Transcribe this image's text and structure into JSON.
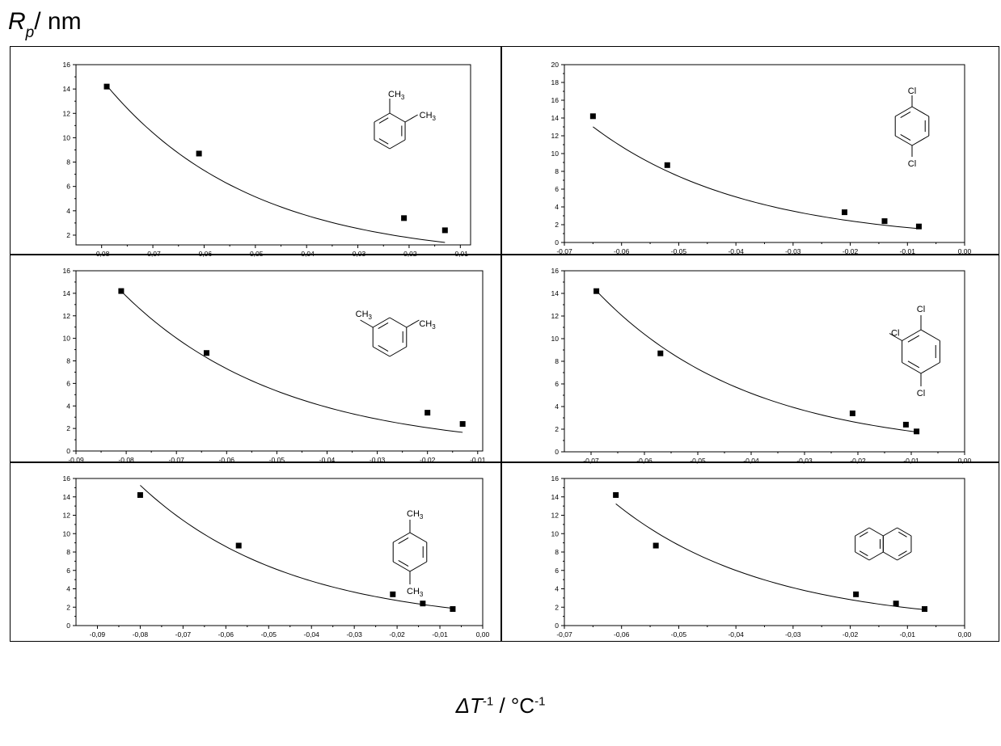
{
  "figure": {
    "ylabel_main": "R",
    "ylabel_sub": "p",
    "ylabel_unit": "/ nm",
    "xlabel_symbol": "ΔT",
    "xlabel_exp": "-1",
    "xlabel_unit": " / °C",
    "xlabel_unit_exp": "-1"
  },
  "chart_data": [
    {
      "type": "scatter",
      "molecule": "o-xylene",
      "xlim": [
        -0.085,
        -0.008
      ],
      "ylim": [
        1.2,
        16
      ],
      "xticks": [
        "-0,08",
        "-0,07",
        "-0,06",
        "-0,05",
        "-0,04",
        "-0,03",
        "-0,02",
        "-0,01"
      ],
      "yticks": [
        "2",
        "4",
        "6",
        "8",
        "10",
        "12",
        "14",
        "16"
      ],
      "points": {
        "x": [
          -0.079,
          -0.061,
          -0.021,
          -0.013
        ],
        "y": [
          14.2,
          8.7,
          3.4,
          2.4
        ]
      },
      "fit": {
        "a": 0.8855,
        "b": -35.2,
        "x_from": -0.079,
        "x_to": -0.013
      },
      "substituents": [
        "CH3",
        "CH3"
      ]
    },
    {
      "type": "scatter",
      "molecule": "p-dichlorobenzene",
      "xlim": [
        -0.07,
        0.0
      ],
      "ylim": [
        0,
        20
      ],
      "xticks": [
        "-0,07",
        "-0,06",
        "-0,05",
        "-0,04",
        "-0,03",
        "-0,02",
        "-0,01",
        "0,00"
      ],
      "yticks": [
        "0",
        "2",
        "4",
        "6",
        "8",
        "10",
        "12",
        "14",
        "16",
        "18",
        "20"
      ],
      "points": {
        "x": [
          -0.065,
          -0.052,
          -0.021,
          -0.014,
          -0.008
        ],
        "y": [
          14.2,
          8.7,
          3.4,
          2.4,
          1.8
        ]
      },
      "fit": {
        "a": 1.152,
        "b": -37.3,
        "x_from": -0.065,
        "x_to": -0.008
      },
      "substituents": [
        "Cl",
        "Cl"
      ]
    },
    {
      "type": "scatter",
      "molecule": "m-xylene",
      "xlim": [
        -0.09,
        -0.009
      ],
      "ylim": [
        0,
        16
      ],
      "xticks": [
        "-0,09",
        "-0,08",
        "-0,07",
        "-0,06",
        "-0,05",
        "-0,04",
        "-0,03",
        "-0,02",
        "-0,01"
      ],
      "yticks": [
        "0",
        "2",
        "4",
        "6",
        "8",
        "10",
        "12",
        "14",
        "16"
      ],
      "points": {
        "x": [
          -0.081,
          -0.064,
          -0.02,
          -0.013
        ],
        "y": [
          14.2,
          8.7,
          3.4,
          2.4
        ]
      },
      "fit": {
        "a": 1.097,
        "b": -31.6,
        "x_from": -0.081,
        "x_to": -0.013
      },
      "substituents": [
        "CH3",
        "CH3"
      ]
    },
    {
      "type": "scatter",
      "molecule": "1,2,4-trichlorobenzene",
      "xlim": [
        -0.075,
        0.0
      ],
      "ylim": [
        0,
        16
      ],
      "xticks": [
        "-0,07",
        "-0,06",
        "-0,05",
        "-0,04",
        "-0,03",
        "-0,02",
        "-0,01",
        "0,00"
      ],
      "yticks": [
        "0",
        "2",
        "4",
        "6",
        "8",
        "10",
        "12",
        "14",
        "16"
      ],
      "points": {
        "x": [
          -0.069,
          -0.057,
          -0.021,
          -0.011,
          -0.009
        ],
        "y": [
          14.2,
          8.7,
          3.4,
          2.4,
          1.8
        ]
      },
      "fit": {
        "a": 1.28,
        "b": -34.9,
        "x_from": -0.069,
        "x_to": -0.009
      },
      "substituents": [
        "Cl",
        "Cl",
        "Cl"
      ]
    },
    {
      "type": "scatter",
      "molecule": "p-xylene",
      "xlim": [
        -0.095,
        0.0
      ],
      "ylim": [
        0,
        16
      ],
      "xticks": [
        "-0,09",
        "-0,08",
        "-0,07",
        "-0,06",
        "-0,05",
        "-0,04",
        "-0,03",
        "-0,02",
        "-0,01",
        "0,00"
      ],
      "yticks": [
        "0",
        "2",
        "4",
        "6",
        "8",
        "10",
        "12",
        "14",
        "16"
      ],
      "points": {
        "x": [
          -0.08,
          -0.057,
          -0.021,
          -0.014,
          -0.007
        ],
        "y": [
          14.2,
          8.7,
          3.4,
          2.4,
          1.8
        ]
      },
      "fit": {
        "a": 1.536,
        "b": -28.7,
        "x_from": -0.08,
        "x_to": -0.007
      },
      "substituents": [
        "CH3",
        "CH3"
      ]
    },
    {
      "type": "scatter",
      "molecule": "naphthalene",
      "xlim": [
        -0.07,
        0.0
      ],
      "ylim": [
        0,
        16
      ],
      "xticks": [
        "-0,07",
        "-0,06",
        "-0,05",
        "-0,04",
        "-0,03",
        "-0,02",
        "-0,01",
        "0,00"
      ],
      "yticks": [
        "0",
        "2",
        "4",
        "6",
        "8",
        "10",
        "12",
        "14",
        "16"
      ],
      "points": {
        "x": [
          -0.061,
          -0.054,
          -0.019,
          -0.012,
          -0.007
        ],
        "y": [
          14.2,
          8.7,
          3.4,
          2.4,
          1.8
        ]
      },
      "fit": {
        "a": 1.328,
        "b": -37.7,
        "x_from": -0.061,
        "x_to": -0.007
      },
      "substituents": []
    }
  ]
}
